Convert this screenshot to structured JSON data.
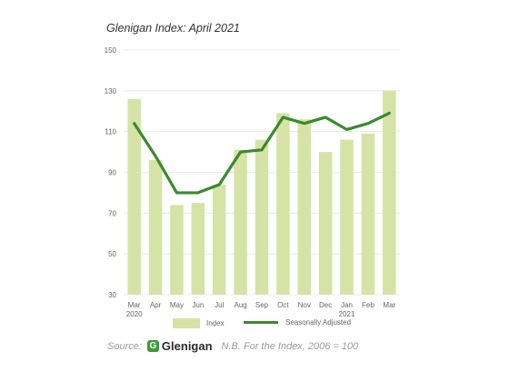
{
  "colors": {
    "bar": "#d7e2a6",
    "line": "#3a8a2d",
    "grid": "#e6e6e6",
    "logo_green": "#3d9a35"
  },
  "chart_data": {
    "type": "bar",
    "title": "Glenigan Index: April 2021",
    "categories": [
      "Mar",
      "Apr",
      "May",
      "Jun",
      "Jul",
      "Aug",
      "Sep",
      "Oct",
      "Nov",
      "Dec",
      "Jan",
      "Feb",
      "Mar"
    ],
    "category_sublabels": [
      "2020",
      "",
      "",
      "",
      "",
      "",
      "",
      "",
      "",
      "",
      "2021",
      "",
      ""
    ],
    "ylim": [
      30,
      150
    ],
    "yticks": [
      30,
      50,
      70,
      90,
      110,
      130,
      150
    ],
    "grid": true,
    "legend_position": "bottom",
    "series": [
      {
        "name": "Index",
        "type": "bar",
        "values": [
          126,
          96,
          74,
          75,
          84,
          101,
          106,
          119,
          116,
          100,
          106,
          109,
          130
        ]
      },
      {
        "name": "Seasonally Adjusted",
        "type": "line",
        "values": [
          114,
          98,
          80,
          80,
          84,
          100,
          101,
          117,
          114,
          117,
          111,
          114,
          119
        ]
      }
    ]
  },
  "source": {
    "label": "Source:",
    "logo_mark": "G",
    "logo_text": "Glenigan",
    "note": "N.B. For the Index, 2006 = 100"
  }
}
